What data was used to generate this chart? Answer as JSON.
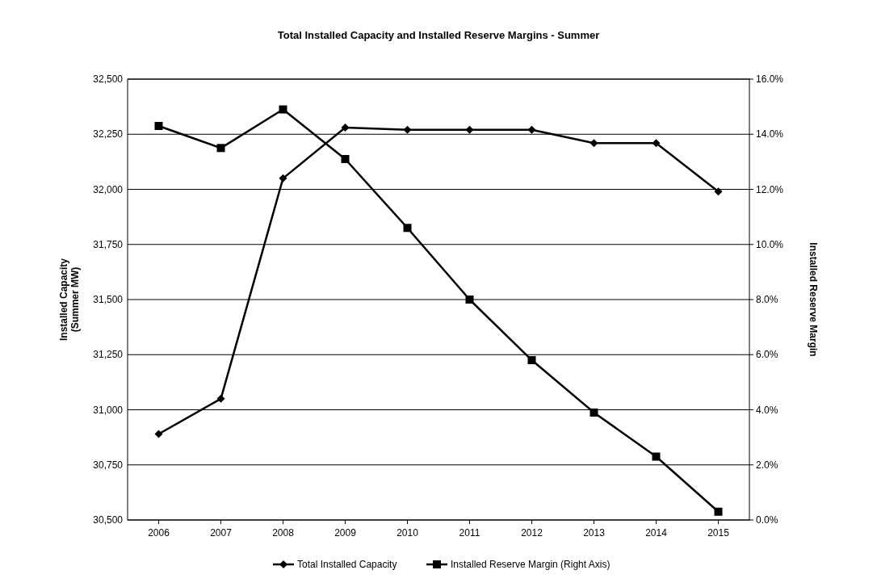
{
  "chart_data": {
    "type": "line",
    "title": "Total Installed Capacity and Installed Reserve Margins - Summer",
    "ylabel": "Installed Capacity\n(Summer MW)",
    "y2label": "Installed Reserve Margin",
    "categories": [
      "2006",
      "2007",
      "2008",
      "2009",
      "2010",
      "2011",
      "2012",
      "2013",
      "2014",
      "2015"
    ],
    "series": [
      {
        "name": "Total Installed Capacity",
        "color": "#000000",
        "marker": "diamond",
        "values": [
          30890,
          31050,
          32050,
          32280,
          32270,
          32270,
          32270,
          32210,
          32210,
          31990
        ]
      },
      {
        "name": "Installed Reserve Margin (Right Axis)",
        "color": "#000000",
        "marker": "square",
        "axis": "y2",
        "values": [
          14.3,
          13.5,
          14.9,
          13.1,
          10.6,
          8.0,
          5.8,
          3.9,
          2.3,
          0.3
        ]
      }
    ],
    "ylim": [
      30500,
      32500
    ],
    "yticks": [
      {
        "value": 30500,
        "label": "30,500"
      },
      {
        "value": 30750,
        "label": "30,750"
      },
      {
        "value": 31000,
        "label": "31,000"
      },
      {
        "value": 31250,
        "label": "31,250"
      },
      {
        "value": 31500,
        "label": "31,500"
      },
      {
        "value": 31750,
        "label": "31,750"
      },
      {
        "value": 32000,
        "label": "32,000"
      },
      {
        "value": 32250,
        "label": "32,250"
      },
      {
        "value": 32500,
        "label": "32,500"
      }
    ],
    "y2lim": [
      0,
      16
    ],
    "y2ticks": [
      {
        "value": 0,
        "label": "0.0%"
      },
      {
        "value": 2,
        "label": "2.0%"
      },
      {
        "value": 4,
        "label": "4.0%"
      },
      {
        "value": 6,
        "label": "6.0%"
      },
      {
        "value": 8,
        "label": "8.0%"
      },
      {
        "value": 10,
        "label": "10.0%"
      },
      {
        "value": 12,
        "label": "12.0%"
      },
      {
        "value": 14,
        "label": "14.0%"
      },
      {
        "value": 16,
        "label": "16.0%"
      }
    ],
    "grid": "y",
    "legend": "bottom",
    "line_style": "solid"
  }
}
